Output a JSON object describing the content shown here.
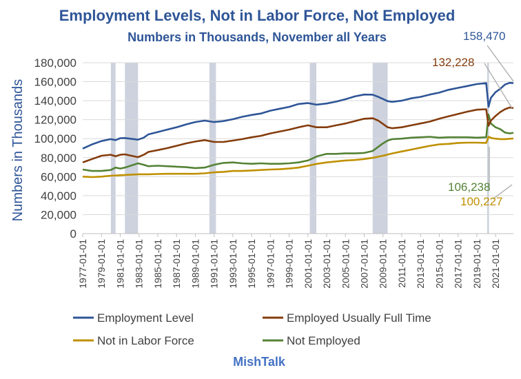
{
  "chart_data": {
    "type": "line",
    "title": "Employment Levels, Not in Labor Force, Not Employed",
    "subtitle": "Numbers in Thousands, November all Years",
    "ylabel": "Numbers in Thousands",
    "xlabel": "",
    "ylim": [
      0,
      180000
    ],
    "yticks": [
      "0",
      "20,000",
      "40,000",
      "60,000",
      "80,000",
      "100,000",
      "120,000",
      "140,000",
      "160,000",
      "180,000"
    ],
    "xlim": [
      1977.0,
      2022.9
    ],
    "xticks": [
      "1977-01-01",
      "1979-01-01",
      "1981-01-01",
      "1983-01-01",
      "1985-01-01",
      "1987-01-01",
      "1989-01-01",
      "1991-01-01",
      "1993-01-01",
      "1995-01-01",
      "1997-01-01",
      "1999-01-01",
      "2001-01-01",
      "2003-01-01",
      "2005-01-01",
      "2007-01-01",
      "2009-01-01",
      "2011-01-01",
      "2013-01-01",
      "2015-01-01",
      "2017-01-01",
      "2019-01-01",
      "2021-01-01"
    ],
    "recessions": [
      [
        1980.0,
        1980.5
      ],
      [
        1981.5,
        1982.9
      ],
      [
        1990.5,
        1991.2
      ],
      [
        2001.2,
        2001.9
      ],
      [
        2007.9,
        2009.5
      ],
      [
        2020.1,
        2020.3
      ]
    ],
    "grid": true,
    "legend_position": "bottom",
    "series": [
      {
        "name": "Employment Level",
        "color": "#2e5597",
        "points": [
          [
            1977.0,
            89500
          ],
          [
            1978.0,
            94000
          ],
          [
            1979.0,
            97500
          ],
          [
            1980.0,
            99500
          ],
          [
            1980.5,
            98500
          ],
          [
            1981.0,
            100500
          ],
          [
            1981.5,
            100700
          ],
          [
            1982.9,
            98900
          ],
          [
            1983.5,
            101000
          ],
          [
            1984.0,
            104500
          ],
          [
            1985.0,
            107000
          ],
          [
            1986.0,
            109500
          ],
          [
            1987.0,
            112000
          ],
          [
            1988.0,
            115000
          ],
          [
            1989.0,
            117500
          ],
          [
            1990.0,
            119000
          ],
          [
            1991.0,
            117500
          ],
          [
            1992.0,
            118500
          ],
          [
            1993.0,
            120500
          ],
          [
            1994.0,
            123000
          ],
          [
            1995.0,
            125000
          ],
          [
            1996.0,
            126500
          ],
          [
            1997.0,
            129500
          ],
          [
            1998.0,
            131500
          ],
          [
            1999.0,
            133500
          ],
          [
            2000.0,
            136500
          ],
          [
            2001.0,
            137500
          ],
          [
            2001.9,
            135800
          ],
          [
            2003.0,
            137000
          ],
          [
            2004.0,
            139000
          ],
          [
            2005.0,
            141500
          ],
          [
            2006.0,
            144500
          ],
          [
            2007.0,
            146500
          ],
          [
            2007.9,
            146300
          ],
          [
            2008.5,
            144000
          ],
          [
            2009.5,
            139500
          ],
          [
            2010.0,
            138800
          ],
          [
            2011.0,
            140000
          ],
          [
            2012.0,
            142500
          ],
          [
            2013.0,
            144000
          ],
          [
            2014.0,
            146500
          ],
          [
            2015.0,
            148500
          ],
          [
            2016.0,
            151500
          ],
          [
            2017.0,
            153500
          ],
          [
            2018.0,
            155500
          ],
          [
            2019.0,
            157500
          ],
          [
            2020.0,
            158500
          ],
          [
            2020.25,
            133500
          ],
          [
            2020.5,
            143000
          ],
          [
            2021.0,
            149000
          ],
          [
            2021.5,
            152500
          ],
          [
            2022.0,
            157000
          ],
          [
            2022.5,
            158800
          ],
          [
            2022.9,
            158470
          ]
        ]
      },
      {
        "name": "Employed Usually Full Time",
        "color": "#843c0c",
        "points": [
          [
            1977.0,
            75000
          ],
          [
            1978.0,
            78500
          ],
          [
            1979.0,
            82000
          ],
          [
            1980.0,
            83000
          ],
          [
            1980.5,
            81500
          ],
          [
            1981.0,
            83000
          ],
          [
            1981.5,
            83500
          ],
          [
            1982.9,
            80500
          ],
          [
            1983.5,
            83000
          ],
          [
            1984.0,
            86000
          ],
          [
            1985.0,
            88000
          ],
          [
            1986.0,
            90000
          ],
          [
            1987.0,
            92500
          ],
          [
            1988.0,
            95000
          ],
          [
            1989.0,
            97000
          ],
          [
            1990.0,
            98500
          ],
          [
            1991.0,
            96500
          ],
          [
            1992.0,
            96500
          ],
          [
            1993.0,
            98000
          ],
          [
            1994.0,
            99500
          ],
          [
            1995.0,
            101500
          ],
          [
            1996.0,
            103000
          ],
          [
            1997.0,
            105500
          ],
          [
            1998.0,
            107500
          ],
          [
            1999.0,
            109500
          ],
          [
            2000.0,
            112000
          ],
          [
            2001.0,
            114000
          ],
          [
            2001.9,
            112000
          ],
          [
            2003.0,
            112000
          ],
          [
            2004.0,
            114000
          ],
          [
            2005.0,
            116000
          ],
          [
            2006.0,
            118500
          ],
          [
            2007.0,
            121000
          ],
          [
            2007.9,
            121500
          ],
          [
            2008.5,
            119000
          ],
          [
            2009.5,
            112000
          ],
          [
            2010.0,
            111000
          ],
          [
            2011.0,
            112000
          ],
          [
            2012.0,
            114000
          ],
          [
            2013.0,
            116000
          ],
          [
            2014.0,
            118000
          ],
          [
            2015.0,
            121000
          ],
          [
            2016.0,
            123500
          ],
          [
            2017.0,
            126000
          ],
          [
            2018.0,
            128500
          ],
          [
            2019.0,
            130500
          ],
          [
            2020.0,
            131000
          ],
          [
            2020.25,
            113500
          ],
          [
            2020.5,
            119000
          ],
          [
            2021.0,
            124000
          ],
          [
            2021.5,
            128000
          ],
          [
            2022.0,
            131000
          ],
          [
            2022.5,
            132800
          ],
          [
            2022.9,
            132228
          ]
        ]
      },
      {
        "name": "Not in Labor Force",
        "color": "#bf9000",
        "points": [
          [
            1977.0,
            60000
          ],
          [
            1978.0,
            59500
          ],
          [
            1979.0,
            60000
          ],
          [
            1980.0,
            61000
          ],
          [
            1981.0,
            61500
          ],
          [
            1982.0,
            62000
          ],
          [
            1983.0,
            62500
          ],
          [
            1984.0,
            62500
          ],
          [
            1985.0,
            62800
          ],
          [
            1986.0,
            63000
          ],
          [
            1987.0,
            63000
          ],
          [
            1988.0,
            63000
          ],
          [
            1989.0,
            63000
          ],
          [
            1990.0,
            63500
          ],
          [
            1991.0,
            64500
          ],
          [
            1992.0,
            65000
          ],
          [
            1993.0,
            66000
          ],
          [
            1994.0,
            66000
          ],
          [
            1995.0,
            66500
          ],
          [
            1996.0,
            67000
          ],
          [
            1997.0,
            67500
          ],
          [
            1998.0,
            67800
          ],
          [
            1999.0,
            68500
          ],
          [
            2000.0,
            69500
          ],
          [
            2001.0,
            71500
          ],
          [
            2002.0,
            73500
          ],
          [
            2003.0,
            75000
          ],
          [
            2004.0,
            76000
          ],
          [
            2005.0,
            77000
          ],
          [
            2006.0,
            77500
          ],
          [
            2007.0,
            78500
          ],
          [
            2008.0,
            80000
          ],
          [
            2009.0,
            82000
          ],
          [
            2010.0,
            84500
          ],
          [
            2011.0,
            86500
          ],
          [
            2012.0,
            88500
          ],
          [
            2013.0,
            90500
          ],
          [
            2014.0,
            92500
          ],
          [
            2015.0,
            94000
          ],
          [
            2016.0,
            94500
          ],
          [
            2017.0,
            95500
          ],
          [
            2018.0,
            95800
          ],
          [
            2019.0,
            95800
          ],
          [
            2020.0,
            95500
          ],
          [
            2020.25,
            102000
          ],
          [
            2020.6,
            100500
          ],
          [
            2021.0,
            100000
          ],
          [
            2021.5,
            99500
          ],
          [
            2022.0,
            99500
          ],
          [
            2022.9,
            100227
          ]
        ]
      },
      {
        "name": "Not Employed",
        "color": "#548235",
        "points": [
          [
            1977.0,
            67500
          ],
          [
            1978.0,
            66000
          ],
          [
            1979.0,
            66000
          ],
          [
            1980.0,
            67000
          ],
          [
            1980.5,
            69500
          ],
          [
            1981.0,
            68500
          ],
          [
            1981.5,
            69500
          ],
          [
            1982.9,
            74000
          ],
          [
            1983.5,
            72500
          ],
          [
            1984.0,
            71000
          ],
          [
            1985.0,
            71500
          ],
          [
            1986.0,
            71000
          ],
          [
            1987.0,
            70500
          ],
          [
            1988.0,
            70000
          ],
          [
            1989.0,
            69000
          ],
          [
            1990.0,
            69500
          ],
          [
            1991.0,
            72500
          ],
          [
            1992.0,
            74500
          ],
          [
            1993.0,
            75000
          ],
          [
            1994.0,
            74000
          ],
          [
            1995.0,
            73500
          ],
          [
            1996.0,
            74000
          ],
          [
            1997.0,
            73500
          ],
          [
            1998.0,
            73500
          ],
          [
            1999.0,
            74000
          ],
          [
            2000.0,
            75000
          ],
          [
            2001.0,
            77000
          ],
          [
            2002.0,
            81500
          ],
          [
            2003.0,
            84000
          ],
          [
            2004.0,
            84000
          ],
          [
            2005.0,
            84500
          ],
          [
            2006.0,
            84500
          ],
          [
            2007.0,
            85000
          ],
          [
            2007.9,
            87000
          ],
          [
            2009.0,
            95000
          ],
          [
            2009.5,
            98000
          ],
          [
            2010.0,
            99500
          ],
          [
            2011.0,
            100000
          ],
          [
            2012.0,
            101000
          ],
          [
            2013.0,
            101500
          ],
          [
            2014.0,
            102000
          ],
          [
            2015.0,
            101000
          ],
          [
            2016.0,
            101500
          ],
          [
            2017.0,
            101500
          ],
          [
            2018.0,
            101500
          ],
          [
            2019.0,
            101000
          ],
          [
            2020.0,
            101500
          ],
          [
            2020.25,
            125500
          ],
          [
            2020.5,
            116000
          ],
          [
            2021.0,
            112000
          ],
          [
            2021.5,
            110000
          ],
          [
            2022.0,
            106500
          ],
          [
            2022.5,
            105500
          ],
          [
            2022.9,
            106238
          ]
        ]
      }
    ],
    "annotations": [
      {
        "text": "158,470",
        "series": 0,
        "color": "#2e5597"
      },
      {
        "text": "132,228",
        "series": 1,
        "color": "#843c0c"
      },
      {
        "text": "106,238",
        "series": 3,
        "color": "#548235"
      },
      {
        "text": "100,227",
        "series": 2,
        "color": "#bf9000"
      }
    ],
    "source": "MishTalk"
  },
  "colors": {
    "title": "#2e5597",
    "recession": "#cdd2de",
    "grid": "#d9d9d9",
    "brand": "#4472c4"
  }
}
